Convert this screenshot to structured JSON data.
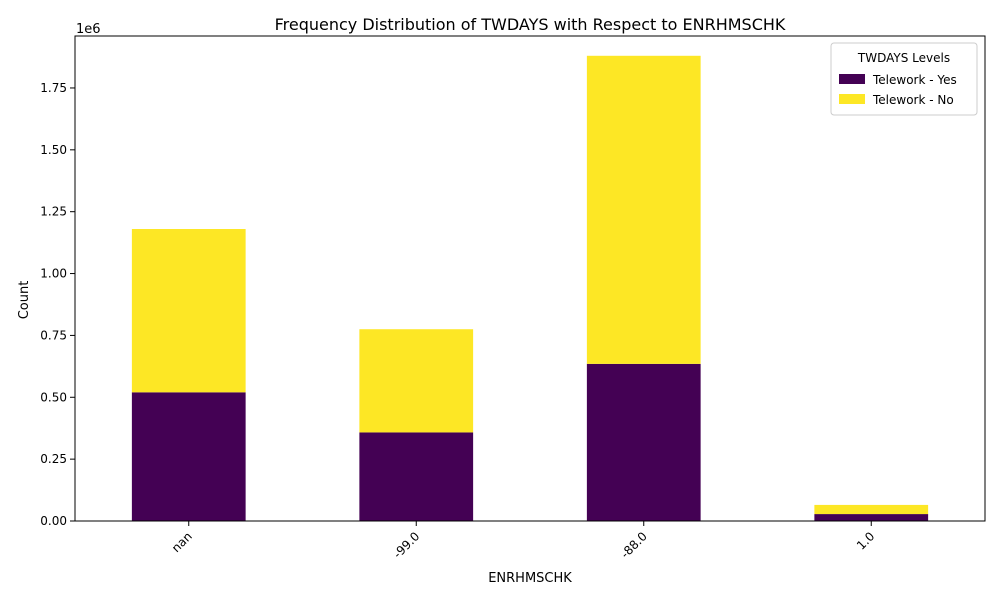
{
  "chart_data": {
    "type": "bar",
    "stacked": true,
    "title": "Frequency Distribution of TWDAYS with Respect to ENRHMSCHK",
    "xlabel": "ENRHMSCHK",
    "ylabel": "Count",
    "y_offset_label": "1e6",
    "categories": [
      "nan",
      "-99.0",
      "-88.0",
      "1.0"
    ],
    "series": [
      {
        "name": "Telework - Yes",
        "color": "#440154",
        "values": [
          520000,
          358000,
          635000,
          28000
        ]
      },
      {
        "name": "Telework - No",
        "color": "#fde725",
        "values": [
          660000,
          417000,
          1245000,
          37000
        ]
      }
    ],
    "ylim": [
      0,
      1960000
    ],
    "yticks": [
      0,
      250000,
      500000,
      750000,
      1000000,
      1250000,
      1500000,
      1750000
    ],
    "ytick_labels": [
      "0.00",
      "0.25",
      "0.50",
      "0.75",
      "1.00",
      "1.25",
      "1.50",
      "1.75"
    ],
    "xtick_rotation": 45,
    "legend": {
      "title": "TWDAYS Levels",
      "placement": "top-right"
    },
    "grid": false
  }
}
